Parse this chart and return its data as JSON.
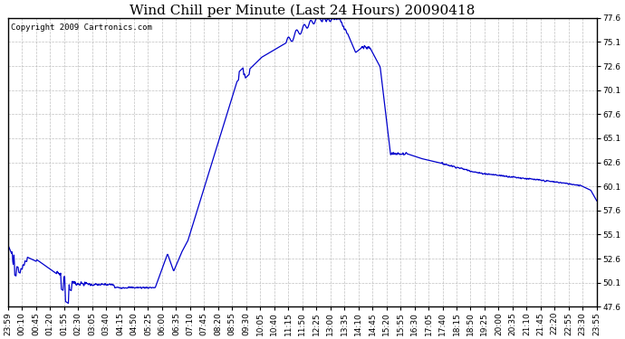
{
  "title": "Wind Chill per Minute (Last 24 Hours) 20090418",
  "copyright": "Copyright 2009 Cartronics.com",
  "line_color": "#0000CC",
  "background_color": "#ffffff",
  "grid_color": "#b0b0b0",
  "ylim": [
    47.6,
    77.6
  ],
  "yticks": [
    47.6,
    50.1,
    52.6,
    55.1,
    57.6,
    60.1,
    62.6,
    65.1,
    67.6,
    70.1,
    72.6,
    75.1,
    77.6
  ],
  "xtick_labels": [
    "23:59",
    "00:10",
    "00:45",
    "01:20",
    "01:55",
    "02:30",
    "03:05",
    "03:40",
    "04:15",
    "04:50",
    "05:25",
    "06:00",
    "06:35",
    "07:10",
    "07:45",
    "08:20",
    "08:55",
    "09:30",
    "10:05",
    "10:40",
    "11:15",
    "11:50",
    "12:25",
    "13:00",
    "13:35",
    "14:10",
    "14:45",
    "15:20",
    "15:55",
    "16:30",
    "17:05",
    "17:40",
    "18:15",
    "18:50",
    "19:25",
    "20:00",
    "20:35",
    "21:10",
    "21:45",
    "22:20",
    "22:55",
    "23:30",
    "23:55"
  ],
  "title_fontsize": 11,
  "tick_fontsize": 6.5,
  "copyright_fontsize": 6.5
}
